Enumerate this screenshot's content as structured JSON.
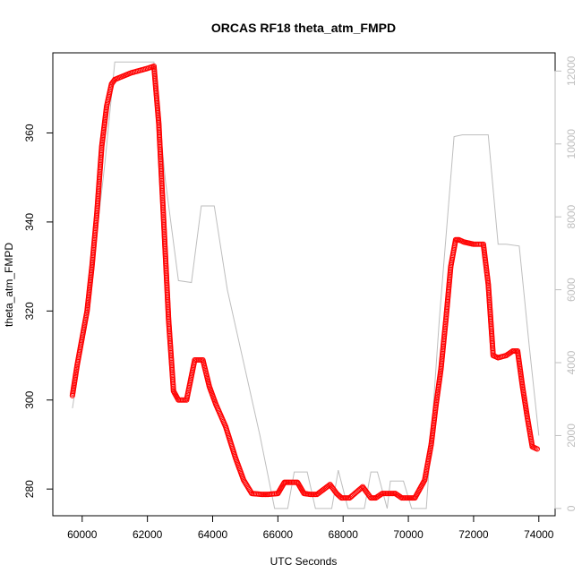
{
  "chart_data": {
    "type": "scatter",
    "title": "ORCAS RF18 theta_atm_FMPD",
    "xlabel": "UTC Seconds",
    "ylabel": "theta_atm_FMPD",
    "xlim": [
      59100,
      74500
    ],
    "ylim": [
      274,
      378
    ],
    "y2lim": [
      -200,
      12500
    ],
    "x_ticks": [
      60000,
      62000,
      64000,
      66000,
      68000,
      70000,
      72000,
      74000
    ],
    "y_ticks": [
      280,
      300,
      320,
      340,
      360
    ],
    "y2_ticks": [
      0,
      2000,
      4000,
      6000,
      8000,
      10000,
      12000
    ],
    "grid": false,
    "series": [
      {
        "style": "open-circles",
        "color": "#ff0000",
        "x": [
          59700,
          59850,
          60000,
          60150,
          60300,
          60450,
          60600,
          60750,
          60900,
          61000,
          61500,
          62000,
          62200,
          62350,
          62500,
          62650,
          62800,
          62950,
          63200,
          63450,
          63700,
          63900,
          64100,
          64400,
          64700,
          64950,
          65200,
          65500,
          65700,
          66000,
          66200,
          66350,
          66600,
          66800,
          67000,
          67200,
          67600,
          67800,
          67950,
          68200,
          68600,
          68850,
          69000,
          69200,
          69600,
          69800,
          70000,
          70200,
          70500,
          70700,
          70850,
          71000,
          71150,
          71300,
          71450,
          71550,
          71700,
          72000,
          72300,
          72450,
          72600,
          72750,
          73000,
          73200,
          73350,
          73500,
          73650,
          73800,
          73950
        ],
        "y": [
          301,
          308,
          314,
          320,
          330,
          342,
          357,
          366,
          371,
          372,
          373.5,
          374.5,
          375,
          362,
          340,
          318,
          302,
          300,
          300,
          309,
          309,
          303,
          299,
          294,
          287,
          282,
          279,
          278.8,
          278.8,
          279,
          281.5,
          281.5,
          281.5,
          279,
          278.8,
          278.8,
          281,
          279,
          278,
          278,
          280.5,
          278,
          278,
          279,
          279,
          278,
          278,
          278,
          282,
          290,
          299,
          307,
          318,
          330,
          336,
          336,
          335.5,
          335,
          335,
          326,
          310,
          309.5,
          310,
          311,
          311,
          303,
          296,
          289.5,
          289
        ]
      },
      {
        "style": "line",
        "color": "#bebebe",
        "axis": "right",
        "x": [
          59700,
          60250,
          60700,
          61000,
          61500,
          62000,
          62200,
          62550,
          62950,
          63350,
          63650,
          64050,
          64450,
          64950,
          65450,
          65900,
          66300,
          66500,
          66900,
          67150,
          67650,
          67850,
          68150,
          68650,
          68850,
          69050,
          69350,
          69450,
          69850,
          70100,
          70550,
          70950,
          71400,
          71650,
          72000,
          72450,
          72750,
          73000,
          73400,
          73700,
          74000
        ],
        "y": [
          2750,
          6000,
          9500,
          12250,
          12250,
          12250,
          12250,
          9000,
          6250,
          6200,
          8300,
          8300,
          6000,
          4000,
          2000,
          0,
          0,
          1000,
          1000,
          0,
          0,
          1050,
          0,
          0,
          1000,
          1000,
          0,
          750,
          750,
          0,
          0,
          5200,
          10200,
          10250,
          10250,
          10250,
          7250,
          7250,
          7200,
          4500,
          2000
        ]
      }
    ]
  }
}
